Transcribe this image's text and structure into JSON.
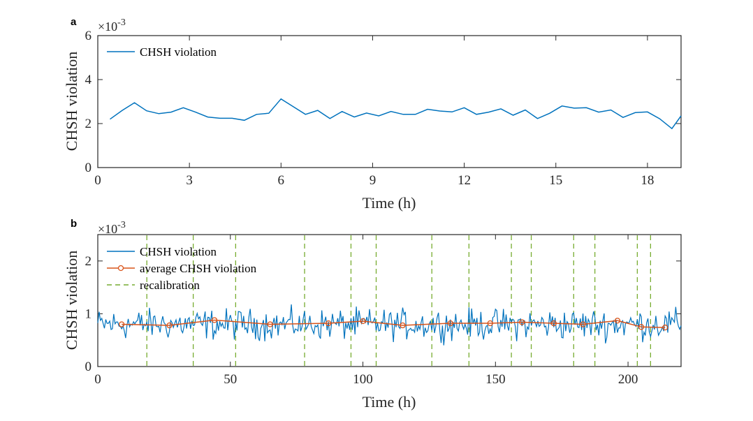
{
  "chart_data": [
    {
      "type": "line",
      "panel_label": "a",
      "xlabel": "Time (h)",
      "ylabel": "CHSH violation",
      "y_multiplier": "×10",
      "y_multiplier_exp": "-3",
      "xlim": [
        0,
        19.1
      ],
      "ylim": [
        0,
        6
      ],
      "xticks": [
        0,
        3,
        6,
        9,
        12,
        15,
        18
      ],
      "yticks": [
        0,
        2,
        4,
        6
      ],
      "legend_position": "top-left",
      "series": [
        {
          "name": "CHSH violation",
          "color": "#0072BD",
          "x": [
            0.4,
            0.8,
            1.2,
            1.6,
            2.0,
            2.4,
            2.8,
            3.2,
            3.6,
            4.0,
            4.4,
            4.8,
            5.2,
            5.6,
            6.0,
            6.4,
            6.8,
            7.2,
            7.6,
            8.0,
            8.4,
            8.8,
            9.2,
            9.6,
            10.0,
            10.4,
            10.8,
            11.2,
            11.6,
            12.0,
            12.4,
            12.8,
            13.2,
            13.6,
            14.0,
            14.4,
            14.8,
            15.2,
            15.6,
            16.0,
            16.4,
            16.8,
            17.2,
            17.6,
            18.0,
            18.4,
            18.8,
            19.1
          ],
          "y": [
            2.2,
            2.6,
            2.95,
            2.58,
            2.45,
            2.52,
            2.72,
            2.52,
            2.3,
            2.24,
            2.24,
            2.15,
            2.42,
            2.47,
            3.12,
            2.77,
            2.42,
            2.6,
            2.23,
            2.55,
            2.3,
            2.48,
            2.35,
            2.55,
            2.42,
            2.42,
            2.65,
            2.57,
            2.53,
            2.72,
            2.42,
            2.52,
            2.67,
            2.38,
            2.62,
            2.23,
            2.47,
            2.8,
            2.7,
            2.72,
            2.52,
            2.62,
            2.28,
            2.5,
            2.53,
            2.22,
            1.77,
            2.35
          ]
        }
      ]
    },
    {
      "type": "line",
      "panel_label": "b",
      "xlabel": "Time (h)",
      "ylabel": "CHSH violation",
      "y_multiplier": "×10",
      "y_multiplier_exp": "-3",
      "xlim": [
        0,
        220
      ],
      "ylim": [
        0,
        2.5
      ],
      "xticks": [
        0,
        50,
        100,
        150,
        200
      ],
      "yticks": [
        0,
        1,
        2
      ],
      "legend_position": "top-left",
      "series": [
        {
          "name": "CHSH violation",
          "color": "#0072BD",
          "x_start": 0,
          "x_step": 0.5,
          "baseline": 0.8,
          "amplitude": 0.14,
          "note_points": 440
        },
        {
          "name": "average CHSH violation",
          "color": "#D95319",
          "marker": "circle",
          "x": [
            9,
            27,
            44,
            65,
            87,
            100,
            115,
            133,
            148,
            160,
            172,
            183,
            196,
            205,
            214
          ],
          "y": [
            0.8,
            0.78,
            0.88,
            0.8,
            0.82,
            0.86,
            0.78,
            0.82,
            0.82,
            0.84,
            0.82,
            0.8,
            0.87,
            0.75,
            0.74
          ]
        },
        {
          "name": "recalibration",
          "color": "#77AC30",
          "style": "dashed",
          "x": [
            18.5,
            36,
            52,
            78,
            95.5,
            105,
            126,
            140,
            156,
            163.5,
            179.5,
            187.5,
            203.5,
            208.5
          ]
        }
      ]
    }
  ]
}
